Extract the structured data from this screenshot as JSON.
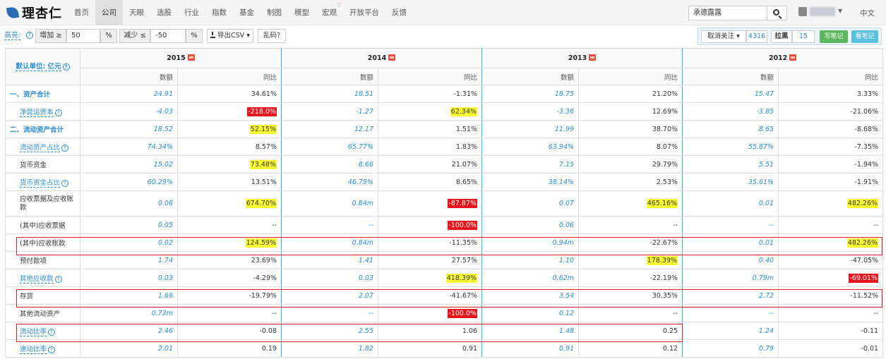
{
  "nav": {
    "brand": "理杏仁",
    "menu": [
      "首页",
      "公司",
      "天眼",
      "选股",
      "行业",
      "指数",
      "基金",
      "制图",
      "模型",
      "宏观",
      "开放平台",
      "反馈"
    ],
    "active_index": 1,
    "search_value": "承德露露",
    "lang": "中文"
  },
  "toolbar": {
    "highlight_label": "高亮:",
    "increase_label": "增加 ≥",
    "increase_value": "50",
    "decrease_label": "减少 ≤",
    "decrease_value": "-50",
    "percent": "%",
    "export_label": "导出CSV",
    "garbled_label": "乱码?",
    "unfollow_label": "取消关注",
    "follow_count": "4316",
    "blacklist_label": "拉黑",
    "blacklist_count": "15",
    "write_note_label": "写笔记",
    "view_note_label": "看笔记"
  },
  "table": {
    "unit_label": "默认单位: 亿元",
    "years": [
      "2015",
      "2014",
      "2013",
      "2012"
    ],
    "value_header": "数额",
    "yoy_header": "同比",
    "rows": [
      {
        "label": "一、资产合计",
        "style": "section",
        "cells": [
          [
            "24.91",
            "34.61%",
            ""
          ],
          [
            "18.51",
            "-1.31%",
            ""
          ],
          [
            "18.75",
            "21.20%",
            ""
          ],
          [
            "15.47",
            "3.33%",
            ""
          ]
        ]
      },
      {
        "label": "净营运资本",
        "style": "link-indent",
        "cells": [
          [
            "-4.03",
            "-218.0%",
            "r"
          ],
          [
            "-1.27",
            "62.34%",
            "y"
          ],
          [
            "-3.36",
            "12.69%",
            ""
          ],
          [
            "-3.85",
            "-21.06%",
            ""
          ]
        ]
      },
      {
        "label": "二、流动资产合计",
        "style": "section",
        "cells": [
          [
            "18.52",
            "52.15%",
            "y"
          ],
          [
            "12.17",
            "1.51%",
            ""
          ],
          [
            "11.99",
            "38.70%",
            ""
          ],
          [
            "8.65",
            "-8.68%",
            ""
          ]
        ]
      },
      {
        "label": "流动资产占比",
        "style": "link-indent",
        "cells": [
          [
            "74.34%",
            "8.57%",
            ""
          ],
          [
            "65.77%",
            "1.83%",
            ""
          ],
          [
            "63.94%",
            "8.07%",
            ""
          ],
          [
            "55.87%",
            "-7.35%",
            ""
          ]
        ]
      },
      {
        "label": "货币资金",
        "style": "indent",
        "cells": [
          [
            "15.02",
            "73.48%",
            "y"
          ],
          [
            "8.66",
            "21.07%",
            ""
          ],
          [
            "7.15",
            "29.79%",
            ""
          ],
          [
            "5.51",
            "-1.94%",
            ""
          ]
        ]
      },
      {
        "label": "货币资金占比",
        "style": "link-indent",
        "cells": [
          [
            "60.29%",
            "13.51%",
            ""
          ],
          [
            "46.79%",
            "8.65%",
            ""
          ],
          [
            "38.14%",
            "2.53%",
            ""
          ],
          [
            "35.61%",
            "-1.91%",
            ""
          ]
        ]
      },
      {
        "label": "应收票据及应收账款",
        "style": "indent-tall",
        "cells": [
          [
            "0.06",
            "674.70%",
            "y"
          ],
          [
            "0.84m",
            "-87.87%",
            "r"
          ],
          [
            "0.07",
            "465.16%",
            "y"
          ],
          [
            "0.01",
            "482.26%",
            "y"
          ]
        ]
      },
      {
        "label": "(其中)应收票据",
        "style": "indent",
        "cells": [
          [
            "0.05",
            "--",
            ""
          ],
          [
            "--",
            "-100.0%",
            "r"
          ],
          [
            "0.06",
            "--",
            ""
          ],
          [
            "--",
            "--",
            ""
          ]
        ]
      },
      {
        "label": "(其中)应收账款",
        "style": "indent",
        "cells": [
          [
            "0.02",
            "124.59%",
            "y"
          ],
          [
            "0.84m",
            "-11.35%",
            ""
          ],
          [
            "0.94m",
            "-22.67%",
            ""
          ],
          [
            "0.01",
            "482.26%",
            "y"
          ]
        ]
      },
      {
        "label": "预付款项",
        "style": "indent",
        "cells": [
          [
            "1.74",
            "23.69%",
            ""
          ],
          [
            "1.41",
            "27.57%",
            ""
          ],
          [
            "1.10",
            "178.39%",
            "y"
          ],
          [
            "0.40",
            "-47.05%",
            ""
          ]
        ]
      },
      {
        "label": "其他应收款",
        "style": "link-indent",
        "cells": [
          [
            "0.03",
            "-4.29%",
            ""
          ],
          [
            "0.03",
            "418.39%",
            "y"
          ],
          [
            "0.62m",
            "-22.19%",
            ""
          ],
          [
            "0.79m",
            "-69.01%",
            "r"
          ]
        ]
      },
      {
        "label": "存货",
        "style": "indent",
        "cells": [
          [
            "1.66",
            "-19.79%",
            ""
          ],
          [
            "2.07",
            "-41.67%",
            ""
          ],
          [
            "3.54",
            "30.35%",
            ""
          ],
          [
            "2.72",
            "-11.52%",
            ""
          ]
        ]
      },
      {
        "label": "其他流动资产",
        "style": "indent",
        "cells": [
          [
            "0.73m",
            "--",
            ""
          ],
          [
            "--",
            "-100.0%",
            "r"
          ],
          [
            "0.12",
            "--",
            ""
          ],
          [
            "--",
            "--",
            ""
          ]
        ]
      },
      {
        "label": "流动比率",
        "style": "link-indent",
        "cells": [
          [
            "2.46",
            "-0.08",
            ""
          ],
          [
            "2.55",
            "1.06",
            ""
          ],
          [
            "1.48",
            "0.25",
            ""
          ],
          [
            "1.24",
            "-0.11",
            ""
          ]
        ]
      },
      {
        "label": "速动比率",
        "style": "link-indent",
        "cells": [
          [
            "2.01",
            "0.19",
            ""
          ],
          [
            "1.82",
            "0.91",
            ""
          ],
          [
            "0.91",
            "0.12",
            ""
          ],
          [
            "0.79",
            "-0.01",
            ""
          ]
        ]
      }
    ]
  },
  "colors": {
    "accent": "#2a8cd0",
    "highlight_yellow": "#ffff33",
    "highlight_red": "#e8141c",
    "annotation_box": "#e02020",
    "year_separator": "#2fb9cf"
  }
}
